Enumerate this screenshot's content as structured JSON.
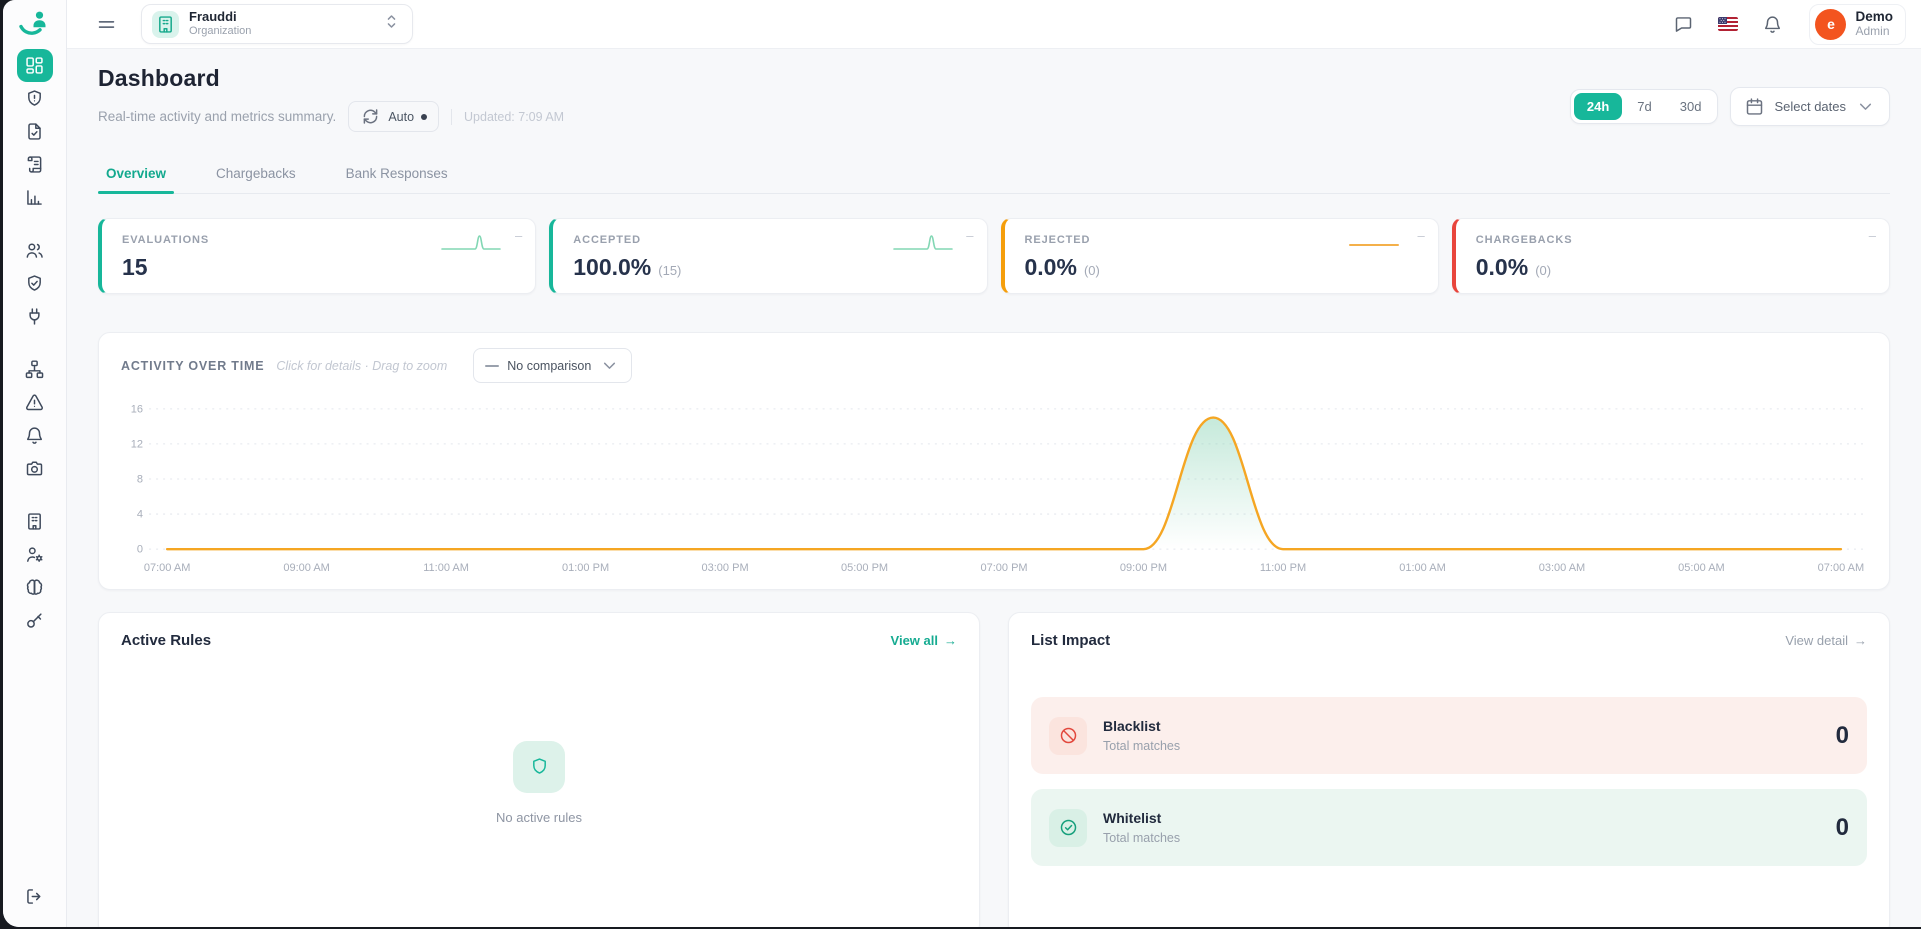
{
  "colors": {
    "accent_green": "#17b79a",
    "orange": "#f59e0b",
    "red": "#e8453c",
    "chart_line": "#f5a623",
    "chart_fill": "#7fcfae",
    "spark_green": "#82d7b4",
    "spark_orange": "#f4b04a",
    "avatar_orange": "#f3541f"
  },
  "topbar": {
    "org": {
      "name": "Frauddi",
      "type": "Organization"
    },
    "user": {
      "initial": "e",
      "name": "Demo",
      "role": "Admin"
    }
  },
  "sidebar": {
    "groups": [
      [
        "layout-dashboard",
        "shield-alert",
        "file-check",
        "scroll",
        "bar-chart"
      ],
      [
        "users",
        "shield-check",
        "plug"
      ],
      [
        "sitemap",
        "alert-triangle",
        "bell",
        "camera"
      ],
      [
        "building",
        "user-cog",
        "brain",
        "key"
      ]
    ],
    "active": "layout-dashboard",
    "logout_icon": "logout"
  },
  "header": {
    "title": "Dashboard",
    "subtitle": "Real-time activity and metrics summary.",
    "auto_label": "Auto",
    "updated": "Updated: 7:09 AM",
    "ranges": [
      "24h",
      "7d",
      "30d"
    ],
    "active_range": "24h",
    "select_dates_label": "Select dates"
  },
  "tabs": [
    {
      "label": "Overview",
      "active": true
    },
    {
      "label": "Chargebacks",
      "active": false
    },
    {
      "label": "Bank Responses",
      "active": false
    }
  ],
  "metrics": [
    {
      "label": "EVALUATIONS",
      "value": "15",
      "sub": "",
      "accent": "#17b79a",
      "spark": "spike",
      "trend": "–"
    },
    {
      "label": "ACCEPTED",
      "value": "100.0%",
      "sub": "(15)",
      "accent": "#17b79a",
      "spark": "spike",
      "trend": "–"
    },
    {
      "label": "REJECTED",
      "value": "0.0%",
      "sub": "(0)",
      "accent": "#f59e0b",
      "spark": "flat",
      "trend": "–"
    },
    {
      "label": "CHARGEBACKS",
      "value": "0.0%",
      "sub": "(0)",
      "accent": "#e8453c",
      "spark": "none",
      "trend": "–"
    }
  ],
  "chart_data": {
    "type": "area",
    "title": "ACTIVITY OVER TIME",
    "hint": "Click for details · Drag to zoom",
    "comparison_label": "No comparison",
    "x_labels": [
      "07:00 AM",
      "09:00 AM",
      "11:00 AM",
      "01:00 PM",
      "03:00 PM",
      "05:00 PM",
      "07:00 PM",
      "09:00 PM",
      "11:00 PM",
      "01:00 AM",
      "03:00 AM",
      "05:00 AM",
      "07:00 AM"
    ],
    "series": [
      {
        "name": "Activity",
        "values": [
          0,
          0,
          0,
          0,
          0,
          0,
          0,
          0,
          0,
          0,
          0,
          0,
          0,
          0,
          0,
          15,
          0,
          0,
          0,
          0,
          0,
          0,
          0,
          0,
          0
        ]
      }
    ],
    "interval_hours": 1,
    "peak": {
      "time": "10:00 PM",
      "value": 15
    },
    "ylim": [
      0,
      16
    ],
    "yticks": [
      0,
      4,
      8,
      12,
      16
    ],
    "grid": "dashed-horizontal",
    "line_color": "#f5a623",
    "fill_color": "#7fcfae"
  },
  "active_rules": {
    "title": "Active Rules",
    "link_label": "View all",
    "link_arrow": "→",
    "empty_text": "No active rules"
  },
  "list_impact": {
    "title": "List Impact",
    "link_label": "View detail",
    "link_arrow": "→",
    "rows": [
      {
        "name": "Blacklist",
        "sub": "Total matches",
        "value": "0"
      },
      {
        "name": "Whitelist",
        "sub": "Total matches",
        "value": "0"
      }
    ]
  }
}
